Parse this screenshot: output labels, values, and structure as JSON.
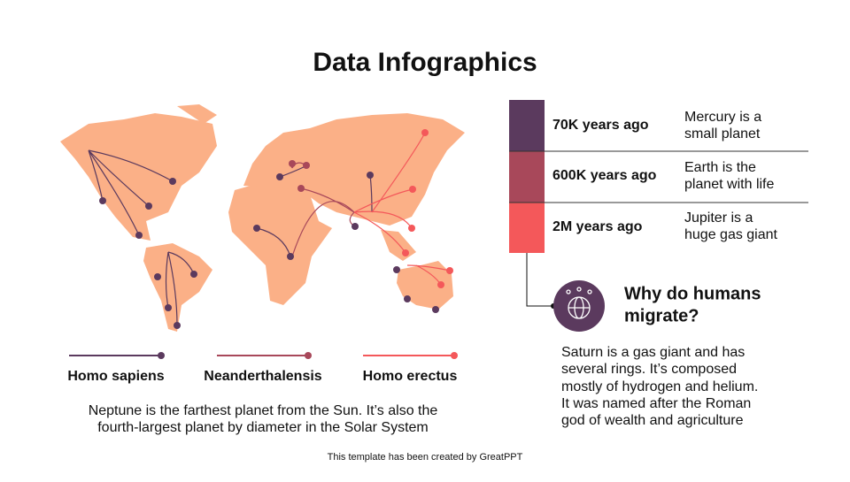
{
  "header": {
    "title": "Data Infographics"
  },
  "legend": [
    {
      "label": "Homo sapiens"
    },
    {
      "label": "Neanderthalensis"
    },
    {
      "label": "Homo erectus"
    }
  ],
  "caption": [
    "Neptune is the farthest planet from the Sun. It’s also the",
    "fourth-largest planet by diameter in the Solar System"
  ],
  "timeline": [
    {
      "time": "70K years ago",
      "description": [
        "Mercury is a",
        "small planet"
      ]
    },
    {
      "time": "600K years ago",
      "description": [
        "Earth is the",
        "planet with life"
      ]
    },
    {
      "time": "2M years ago",
      "description": [
        "Jupiter is a",
        "huge gas giant"
      ]
    }
  ],
  "question": {
    "title": [
      "Why do humans",
      "migrate?"
    ],
    "body": [
      "Saturn is a gas giant and has",
      "several rings. It’s composed",
      "mostly of hydrogen and helium.",
      "It was named after the Roman",
      "god of wealth and agriculture"
    ]
  },
  "footer": "This template has been created by GreatPPT"
}
